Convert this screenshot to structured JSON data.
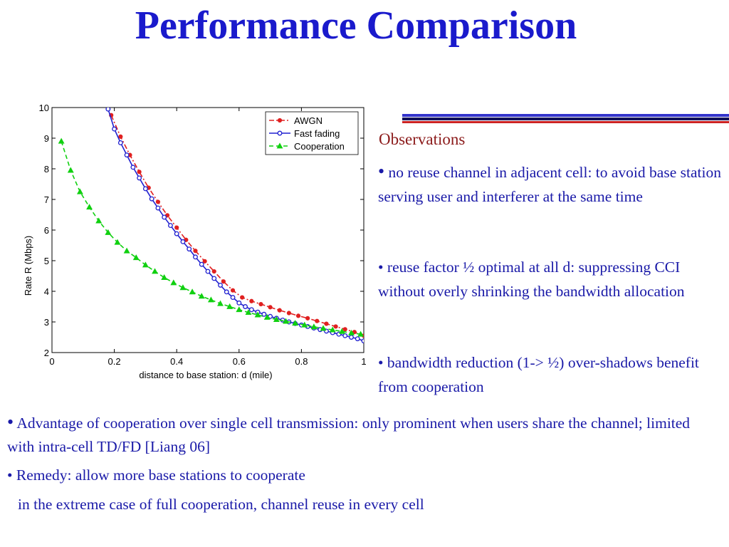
{
  "slide": {
    "title": "Performance Comparison"
  },
  "observations": {
    "title": "Observations",
    "items": [
      "no reuse channel in adjacent cell: to avoid base station serving user and interferer at the same time",
      "reuse factor ½ optimal at all d: suppressing CCI without overly shrinking the bandwidth allocation",
      "bandwidth reduction (1-> ½) over-shadows benefit from cooperation"
    ]
  },
  "bottom": {
    "items": [
      "Advantage of cooperation over single cell transmission: only prominent when users share the channel; limited with intra-cell TD/FD [Liang 06]",
      "Remedy: allow more base stations to cooperate"
    ],
    "continuation": "in the extreme case of full cooperation, channel reuse in every cell"
  },
  "colors": {
    "title": "#1a1acc",
    "body_text": "#1a1aa8",
    "observations_title": "#8b1a1a",
    "band_blue": "#3333cc",
    "band_navy": "#11115a",
    "band_red": "#cc2222"
  },
  "chart_data": {
    "type": "line",
    "title": "",
    "xlabel": "distance to base station: d (mile)",
    "ylabel": "Rate R (Mbps)",
    "xlim": [
      0,
      1
    ],
    "ylim": [
      2,
      10
    ],
    "xticks": [
      "0",
      "0.2",
      "0.4",
      "0.6",
      "0.8",
      "1"
    ],
    "yticks": [
      "2",
      "3",
      "4",
      "5",
      "6",
      "7",
      "8",
      "9",
      "10"
    ],
    "grid": false,
    "legend_position": "top-right",
    "series": [
      {
        "name": "AWGN",
        "color": "#e02020",
        "line": "dash-dot",
        "marker": "circle",
        "x": [
          0.19,
          0.22,
          0.25,
          0.28,
          0.31,
          0.34,
          0.37,
          0.4,
          0.43,
          0.46,
          0.49,
          0.52,
          0.55,
          0.58,
          0.61,
          0.64,
          0.67,
          0.7,
          0.73,
          0.76,
          0.79,
          0.82,
          0.85,
          0.88,
          0.91,
          0.94,
          0.97,
          1.0
        ],
        "y": [
          9.75,
          9.05,
          8.45,
          7.9,
          7.38,
          6.92,
          6.48,
          6.08,
          5.68,
          5.32,
          4.98,
          4.65,
          4.32,
          4.03,
          3.8,
          3.68,
          3.58,
          3.48,
          3.38,
          3.29,
          3.2,
          3.12,
          3.03,
          2.94,
          2.85,
          2.76,
          2.67,
          2.55
        ]
      },
      {
        "name": "Fast fading",
        "color": "#2020d0",
        "line": "solid",
        "marker": "circle-open",
        "x": [
          0.18,
          0.2,
          0.22,
          0.24,
          0.26,
          0.28,
          0.3,
          0.32,
          0.34,
          0.36,
          0.38,
          0.4,
          0.42,
          0.44,
          0.46,
          0.48,
          0.5,
          0.52,
          0.54,
          0.56,
          0.58,
          0.6,
          0.62,
          0.64,
          0.66,
          0.68,
          0.7,
          0.72,
          0.74,
          0.76,
          0.78,
          0.8,
          0.82,
          0.84,
          0.86,
          0.88,
          0.9,
          0.92,
          0.94,
          0.96,
          0.98,
          1.0
        ],
        "y": [
          9.95,
          9.3,
          8.85,
          8.45,
          8.05,
          7.7,
          7.35,
          7.02,
          6.72,
          6.42,
          6.15,
          5.88,
          5.62,
          5.38,
          5.12,
          4.88,
          4.65,
          4.42,
          4.2,
          3.98,
          3.8,
          3.62,
          3.5,
          3.4,
          3.32,
          3.25,
          3.18,
          3.12,
          3.06,
          3.0,
          2.95,
          2.9,
          2.85,
          2.8,
          2.75,
          2.7,
          2.65,
          2.6,
          2.55,
          2.5,
          2.45,
          2.38
        ]
      },
      {
        "name": "Cooperation",
        "color": "#10d010",
        "line": "dashed",
        "marker": "triangle",
        "x": [
          0.03,
          0.06,
          0.09,
          0.12,
          0.15,
          0.18,
          0.21,
          0.24,
          0.27,
          0.3,
          0.33,
          0.36,
          0.39,
          0.42,
          0.45,
          0.48,
          0.51,
          0.54,
          0.57,
          0.6,
          0.63,
          0.66,
          0.69,
          0.72,
          0.75,
          0.78,
          0.81,
          0.84,
          0.87,
          0.9,
          0.93,
          0.96,
          0.99
        ],
        "y": [
          8.9,
          7.95,
          7.25,
          6.75,
          6.3,
          5.92,
          5.6,
          5.32,
          5.1,
          4.86,
          4.65,
          4.45,
          4.28,
          4.12,
          3.98,
          3.84,
          3.72,
          3.6,
          3.5,
          3.4,
          3.31,
          3.23,
          3.15,
          3.08,
          3.02,
          2.96,
          2.9,
          2.84,
          2.79,
          2.74,
          2.69,
          2.64,
          2.6
        ]
      }
    ]
  }
}
